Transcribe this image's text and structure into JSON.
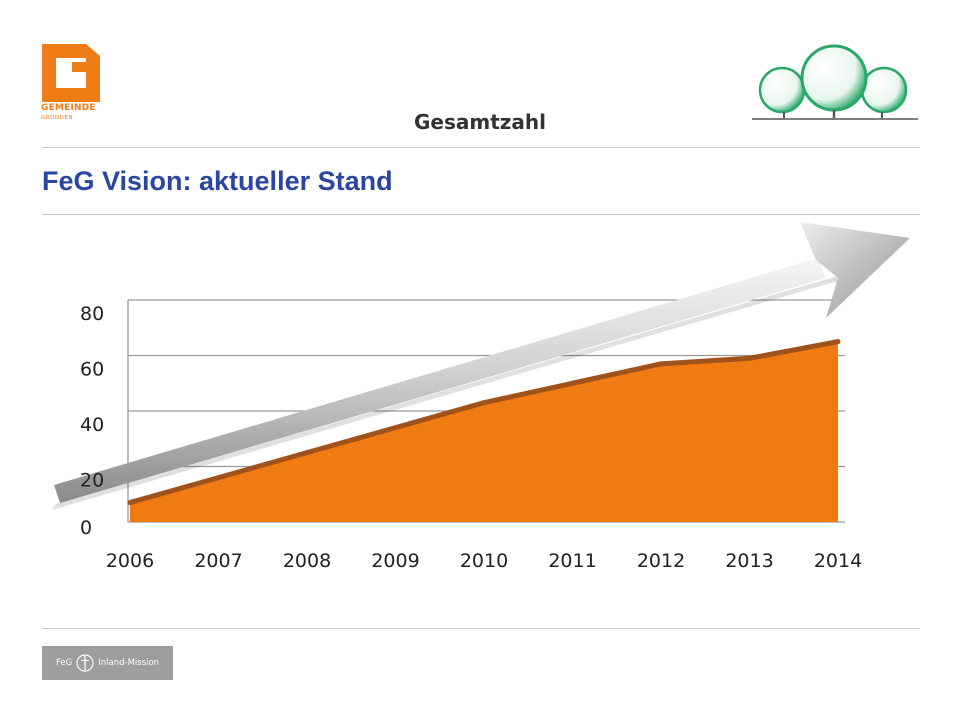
{
  "header": {
    "left_logo": {
      "name": "GEMEINDE",
      "sub": "GRÜNDEN",
      "color": "#ef7d17"
    },
    "right_logo": {
      "icon": "trees-logo-icon",
      "color": "#2aa86a"
    }
  },
  "slide": {
    "heading": "FeG Vision: aktueller Stand",
    "heading_color": "#2a46a0"
  },
  "chart_data": {
    "type": "area",
    "title": "Gesamtzahl",
    "xlabel": "",
    "ylabel": "",
    "x": [
      "2006",
      "2007",
      "2008",
      "2009",
      "2010",
      "2011",
      "2012",
      "2013",
      "2014"
    ],
    "series": [
      {
        "values": [
          7,
          16,
          25,
          34,
          43,
          50,
          57,
          59,
          65
        ],
        "color": "#f07b12",
        "line_color": "#a0521a"
      }
    ],
    "ylim": [
      0,
      80
    ],
    "yticks": [
      "0",
      "20",
      "40",
      "60",
      "80"
    ],
    "grid": true,
    "legend": "none",
    "annotation": "trend-arrow"
  },
  "footer": {
    "logo_left": "FeG",
    "logo_right": "Inland-Mission"
  }
}
